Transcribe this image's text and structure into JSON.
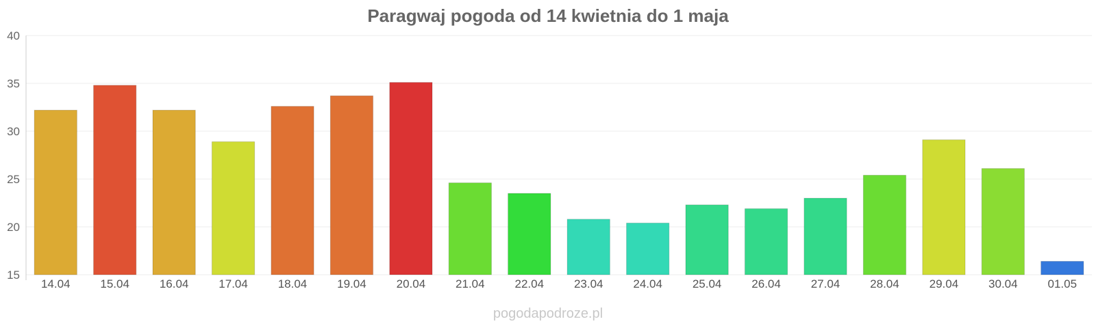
{
  "chart_data": {
    "type": "bar",
    "title": "Paragwaj pogoda od 14 kwietnia do 1 maja",
    "categories": [
      "14.04",
      "15.04",
      "16.04",
      "17.04",
      "18.04",
      "19.04",
      "20.04",
      "21.04",
      "22.04",
      "23.04",
      "24.04",
      "25.04",
      "26.04",
      "27.04",
      "28.04",
      "29.04",
      "30.04",
      "01.05"
    ],
    "values": [
      32.2,
      34.8,
      32.2,
      28.9,
      32.6,
      33.7,
      35.1,
      24.6,
      23.5,
      20.8,
      20.4,
      22.3,
      21.9,
      23.0,
      25.4,
      29.1,
      26.1,
      16.4
    ],
    "colors": [
      "#dcaa33",
      "#df5233",
      "#dcaa33",
      "#cfdc33",
      "#df7133",
      "#df7133",
      "#db3333",
      "#6bdc33",
      "#33dc3a",
      "#33d9b5",
      "#33d9b5",
      "#33d98a",
      "#33d98a",
      "#33d98a",
      "#6bdc33",
      "#cfdc33",
      "#8bdc33",
      "#3478dc"
    ],
    "yticks": [
      15,
      20,
      25,
      30,
      35,
      40
    ],
    "ylim": [
      15,
      40
    ],
    "xlabel": "",
    "ylabel": "",
    "grid": true,
    "legend": "none"
  },
  "watermark": "pogodapodroze.pl"
}
